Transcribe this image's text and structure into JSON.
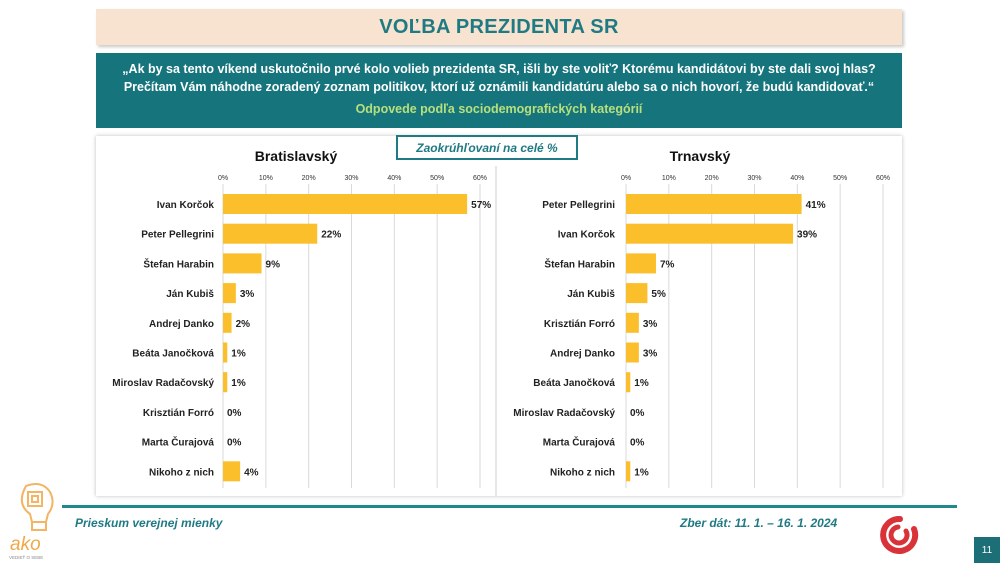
{
  "header": {
    "title": "VOĽBA PREZIDENTA SR"
  },
  "question": {
    "line1": "„Ak by sa tento víkend uskutočnilo prvé kolo volieb prezidenta SR, išli by ste voliť? Ktorému kandidátovi by ste dali svoj hlas?",
    "line2": "Prečítam Vám náhodne zoradený zoznam politikov, ktorí už oznámili kandidatúru alebo sa o nich hovorí, že budú kandidovať.“",
    "subtitle": "Odpovede podľa sociodemografických kategórií"
  },
  "note": "Zaokrúhľovaní na celé %",
  "footer": {
    "survey": "Prieskum verejnej mienky",
    "dates": "Zber dát: 11. 1. – 16. 1. 2024",
    "page": "11",
    "logo_text": "ako",
    "logo_tagline": "VEDIEŤ O SEBE"
  },
  "colors": {
    "bar": "#fbbf2c",
    "teal": "#16747d",
    "title_bg": "#f7e3cf",
    "green_text": "#b7e07d"
  },
  "chart_data": [
    {
      "type": "bar",
      "orientation": "horizontal",
      "title": "Bratislavský",
      "categories": [
        "Ivan Korčok",
        "Peter Pellegrini",
        "Štefan Harabin",
        "Ján Kubiš",
        "Andrej Danko",
        "Beáta Janočková",
        "Miroslav Radačovský",
        "Krisztián Forró",
        "Marta Čurajová",
        "Nikoho z nich"
      ],
      "values": [
        57,
        22,
        9,
        3,
        2,
        1,
        1,
        0,
        0,
        4
      ],
      "value_labels": [
        "57%",
        "22%",
        "9%",
        "3%",
        "2%",
        "1%",
        "1%",
        "0%",
        "0%",
        "4%"
      ],
      "xlim": [
        0,
        60
      ],
      "ticks": [
        "0%",
        "10%",
        "20%",
        "30%",
        "40%",
        "50%",
        "60%"
      ],
      "grid": true
    },
    {
      "type": "bar",
      "orientation": "horizontal",
      "title": "Trnavský",
      "categories": [
        "Peter Pellegrini",
        "Ivan Korčok",
        "Štefan Harabin",
        "Ján Kubiš",
        "Krisztián Forró",
        "Andrej Danko",
        "Beáta Janočková",
        "Miroslav Radačovský",
        "Marta Čurajová",
        "Nikoho z nich"
      ],
      "values": [
        41,
        39,
        7,
        5,
        3,
        3,
        1,
        0,
        0,
        1
      ],
      "value_labels": [
        "41%",
        "39%",
        "7%",
        "5%",
        "3%",
        "3%",
        "1%",
        "0%",
        "0%",
        "1%"
      ],
      "xlim": [
        0,
        60
      ],
      "ticks": [
        "0%",
        "10%",
        "20%",
        "30%",
        "40%",
        "50%",
        "60%"
      ],
      "grid": true
    }
  ]
}
